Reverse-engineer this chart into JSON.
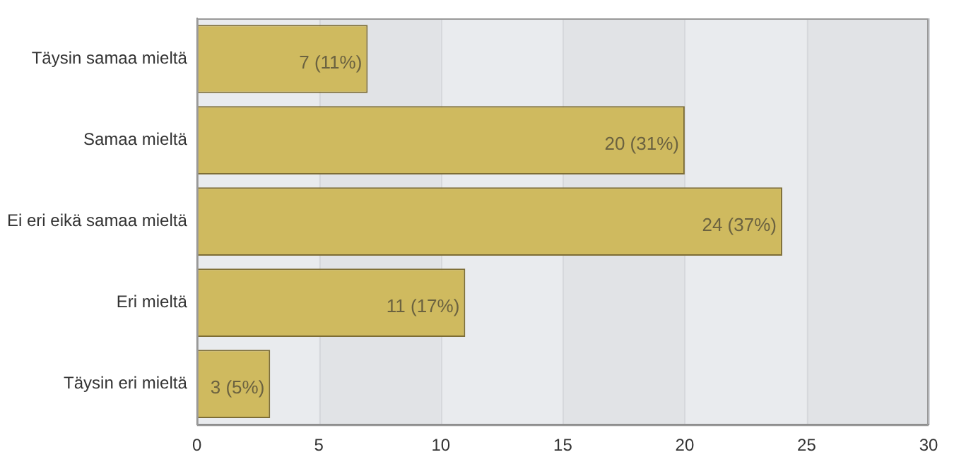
{
  "chart_data": {
    "type": "bar",
    "orientation": "horizontal",
    "categories": [
      "Täysin samaa mieltä",
      "Samaa mieltä",
      "Ei eri eikä samaa mieltä",
      "Eri mieltä",
      "Täysin eri mieltä"
    ],
    "values": [
      7,
      20,
      24,
      11,
      3
    ],
    "color": "#cfba5f",
    "value_labels": [
      "7 (11%)",
      "20 (31%)",
      "24 (37%)",
      "11 (17%)",
      "3 (5%)"
    ],
    "xlim": [
      0,
      30
    ],
    "xticks": [
      0,
      5,
      10,
      15,
      20,
      25,
      30
    ],
    "grid": "x",
    "legend": false
  }
}
